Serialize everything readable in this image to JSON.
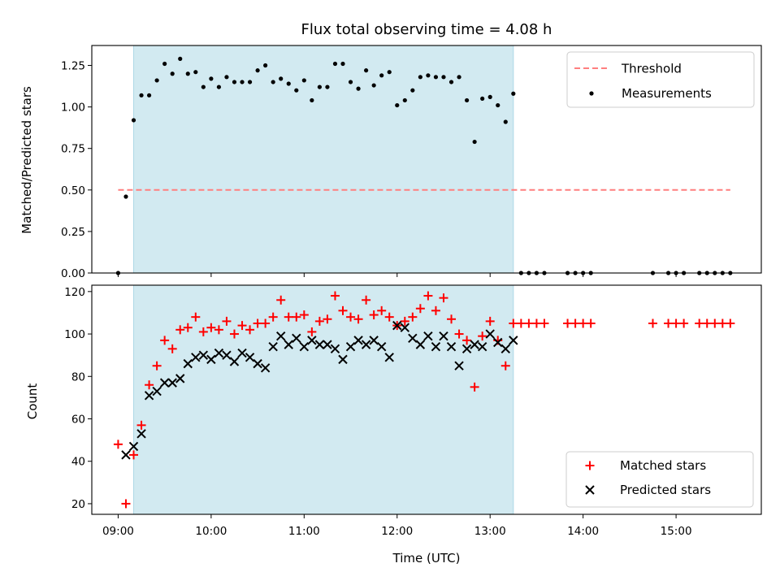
{
  "chart_data": [
    {
      "type": "scatter",
      "title": "Flux total observing time = 4.08 h",
      "xlabel": "",
      "ylabel": "Matched/Predicted stars",
      "ylim": [
        0,
        1.37
      ],
      "yticks": [
        "0.00",
        "0.25",
        "0.50",
        "0.75",
        "1.00",
        "1.25"
      ],
      "shaded_region": {
        "x_start": "09:10",
        "x_end": "13:15",
        "color": "#add8e6"
      },
      "threshold": {
        "name": "Threshold",
        "value": 0.5,
        "x_start": "09:00",
        "x_end": "15:35",
        "color": "#ff7f7f"
      },
      "legend": {
        "position": "upper-right",
        "entries": [
          "Threshold",
          "Measurements"
        ]
      },
      "series": [
        {
          "name": "Measurements",
          "color": "#000000",
          "points": [
            [
              "09:00",
              0.0
            ],
            [
              "09:05",
              0.46
            ],
            [
              "09:10",
              0.92
            ],
            [
              "09:15",
              1.07
            ],
            [
              "09:20",
              1.07
            ],
            [
              "09:25",
              1.16
            ],
            [
              "09:30",
              1.26
            ],
            [
              "09:35",
              1.2
            ],
            [
              "09:40",
              1.29
            ],
            [
              "09:45",
              1.2
            ],
            [
              "09:50",
              1.21
            ],
            [
              "09:55",
              1.12
            ],
            [
              "10:00",
              1.17
            ],
            [
              "10:05",
              1.12
            ],
            [
              "10:10",
              1.18
            ],
            [
              "10:15",
              1.15
            ],
            [
              "10:20",
              1.15
            ],
            [
              "10:25",
              1.15
            ],
            [
              "10:30",
              1.22
            ],
            [
              "10:35",
              1.25
            ],
            [
              "10:40",
              1.15
            ],
            [
              "10:45",
              1.17
            ],
            [
              "10:50",
              1.14
            ],
            [
              "10:55",
              1.1
            ],
            [
              "11:00",
              1.16
            ],
            [
              "11:05",
              1.04
            ],
            [
              "11:10",
              1.12
            ],
            [
              "11:15",
              1.12
            ],
            [
              "11:20",
              1.26
            ],
            [
              "11:25",
              1.26
            ],
            [
              "11:30",
              1.15
            ],
            [
              "11:35",
              1.11
            ],
            [
              "11:40",
              1.22
            ],
            [
              "11:45",
              1.13
            ],
            [
              "11:50",
              1.19
            ],
            [
              "11:55",
              1.21
            ],
            [
              "12:00",
              1.01
            ],
            [
              "12:05",
              1.04
            ],
            [
              "12:10",
              1.1
            ],
            [
              "12:15",
              1.18
            ],
            [
              "12:20",
              1.19
            ],
            [
              "12:25",
              1.18
            ],
            [
              "12:30",
              1.18
            ],
            [
              "12:35",
              1.15
            ],
            [
              "12:40",
              1.18
            ],
            [
              "12:45",
              1.04
            ],
            [
              "12:50",
              0.79
            ],
            [
              "12:55",
              1.05
            ],
            [
              "13:00",
              1.06
            ],
            [
              "13:05",
              1.01
            ],
            [
              "13:10",
              0.91
            ],
            [
              "13:15",
              1.08
            ],
            [
              "13:20",
              0.0
            ],
            [
              "13:25",
              0.0
            ],
            [
              "13:30",
              0.0
            ],
            [
              "13:35",
              0.0
            ],
            [
              "13:50",
              0.0
            ],
            [
              "13:55",
              0.0
            ],
            [
              "14:00",
              0.0
            ],
            [
              "14:05",
              0.0
            ],
            [
              "14:45",
              0.0
            ],
            [
              "14:55",
              0.0
            ],
            [
              "15:00",
              0.0
            ],
            [
              "15:05",
              0.0
            ],
            [
              "15:15",
              0.0
            ],
            [
              "15:20",
              0.0
            ],
            [
              "15:25",
              0.0
            ],
            [
              "15:30",
              0.0
            ],
            [
              "15:35",
              0.0
            ]
          ]
        }
      ]
    },
    {
      "type": "scatter",
      "title": "",
      "xlabel": "Time (UTC)",
      "ylabel": "Count",
      "ylim": [
        15,
        123
      ],
      "yticks": [
        "20",
        "40",
        "60",
        "80",
        "100",
        "120"
      ],
      "xticks": [
        "09:00",
        "10:00",
        "11:00",
        "12:00",
        "13:00",
        "14:00",
        "15:00"
      ],
      "xlim": [
        "08:43",
        "15:55"
      ],
      "shaded_region": {
        "x_start": "09:10",
        "x_end": "13:15",
        "color": "#add8e6"
      },
      "legend": {
        "position": "lower-right",
        "entries": [
          "Matched stars",
          "Predicted stars"
        ]
      },
      "series": [
        {
          "name": "Matched stars",
          "marker": "+",
          "color": "#ff0000",
          "points": [
            [
              "09:00",
              48
            ],
            [
              "09:05",
              20
            ],
            [
              "09:10",
              43
            ],
            [
              "09:15",
              57
            ],
            [
              "09:20",
              76
            ],
            [
              "09:25",
              85
            ],
            [
              "09:30",
              97
            ],
            [
              "09:35",
              93
            ],
            [
              "09:40",
              102
            ],
            [
              "09:45",
              103
            ],
            [
              "09:50",
              108
            ],
            [
              "09:55",
              101
            ],
            [
              "10:00",
              103
            ],
            [
              "10:05",
              102
            ],
            [
              "10:10",
              106
            ],
            [
              "10:15",
              100
            ],
            [
              "10:20",
              104
            ],
            [
              "10:25",
              102
            ],
            [
              "10:30",
              105
            ],
            [
              "10:35",
              105
            ],
            [
              "10:40",
              108
            ],
            [
              "10:45",
              116
            ],
            [
              "10:50",
              108
            ],
            [
              "10:55",
              108
            ],
            [
              "11:00",
              109
            ],
            [
              "11:05",
              101
            ],
            [
              "11:10",
              106
            ],
            [
              "11:15",
              107
            ],
            [
              "11:20",
              118
            ],
            [
              "11:25",
              111
            ],
            [
              "11:30",
              108
            ],
            [
              "11:35",
              107
            ],
            [
              "11:40",
              116
            ],
            [
              "11:45",
              109
            ],
            [
              "11:50",
              111
            ],
            [
              "11:55",
              108
            ],
            [
              "12:00",
              104
            ],
            [
              "12:05",
              106
            ],
            [
              "12:10",
              108
            ],
            [
              "12:15",
              112
            ],
            [
              "12:20",
              118
            ],
            [
              "12:25",
              111
            ],
            [
              "12:30",
              117
            ],
            [
              "12:35",
              107
            ],
            [
              "12:40",
              100
            ],
            [
              "12:45",
              97
            ],
            [
              "12:50",
              75
            ],
            [
              "12:55",
              99
            ],
            [
              "13:00",
              106
            ],
            [
              "13:05",
              97
            ],
            [
              "13:10",
              85
            ],
            [
              "13:15",
              105
            ],
            [
              "13:20",
              105
            ],
            [
              "13:25",
              105
            ],
            [
              "13:30",
              105
            ],
            [
              "13:35",
              105
            ],
            [
              "13:50",
              105
            ],
            [
              "13:55",
              105
            ],
            [
              "14:00",
              105
            ],
            [
              "14:05",
              105
            ],
            [
              "14:45",
              105
            ],
            [
              "14:55",
              105
            ],
            [
              "15:00",
              105
            ],
            [
              "15:05",
              105
            ],
            [
              "15:15",
              105
            ],
            [
              "15:20",
              105
            ],
            [
              "15:25",
              105
            ],
            [
              "15:30",
              105
            ],
            [
              "15:35",
              105
            ]
          ]
        },
        {
          "name": "Predicted stars",
          "marker": "x",
          "color": "#000000",
          "points": [
            [
              "09:05",
              43
            ],
            [
              "09:10",
              47
            ],
            [
              "09:15",
              53
            ],
            [
              "09:20",
              71
            ],
            [
              "09:25",
              73
            ],
            [
              "09:30",
              77
            ],
            [
              "09:35",
              77
            ],
            [
              "09:40",
              79
            ],
            [
              "09:45",
              86
            ],
            [
              "09:50",
              89
            ],
            [
              "09:55",
              90
            ],
            [
              "10:00",
              88
            ],
            [
              "10:05",
              91
            ],
            [
              "10:10",
              90
            ],
            [
              "10:15",
              87
            ],
            [
              "10:20",
              91
            ],
            [
              "10:25",
              89
            ],
            [
              "10:30",
              86
            ],
            [
              "10:35",
              84
            ],
            [
              "10:40",
              94
            ],
            [
              "10:45",
              99
            ],
            [
              "10:50",
              95
            ],
            [
              "10:55",
              98
            ],
            [
              "11:00",
              94
            ],
            [
              "11:05",
              97
            ],
            [
              "11:10",
              95
            ],
            [
              "11:15",
              95
            ],
            [
              "11:20",
              93
            ],
            [
              "11:25",
              88
            ],
            [
              "11:30",
              94
            ],
            [
              "11:35",
              97
            ],
            [
              "11:40",
              95
            ],
            [
              "11:45",
              97
            ],
            [
              "11:50",
              94
            ],
            [
              "11:55",
              89
            ],
            [
              "12:00",
              104
            ],
            [
              "12:05",
              103
            ],
            [
              "12:10",
              98
            ],
            [
              "12:15",
              95
            ],
            [
              "12:20",
              99
            ],
            [
              "12:25",
              94
            ],
            [
              "12:30",
              99
            ],
            [
              "12:35",
              94
            ],
            [
              "12:40",
              85
            ],
            [
              "12:45",
              93
            ],
            [
              "12:50",
              95
            ],
            [
              "12:55",
              94
            ],
            [
              "13:00",
              100
            ],
            [
              "13:05",
              96
            ],
            [
              "13:10",
              93
            ],
            [
              "13:15",
              97
            ]
          ]
        }
      ]
    }
  ]
}
